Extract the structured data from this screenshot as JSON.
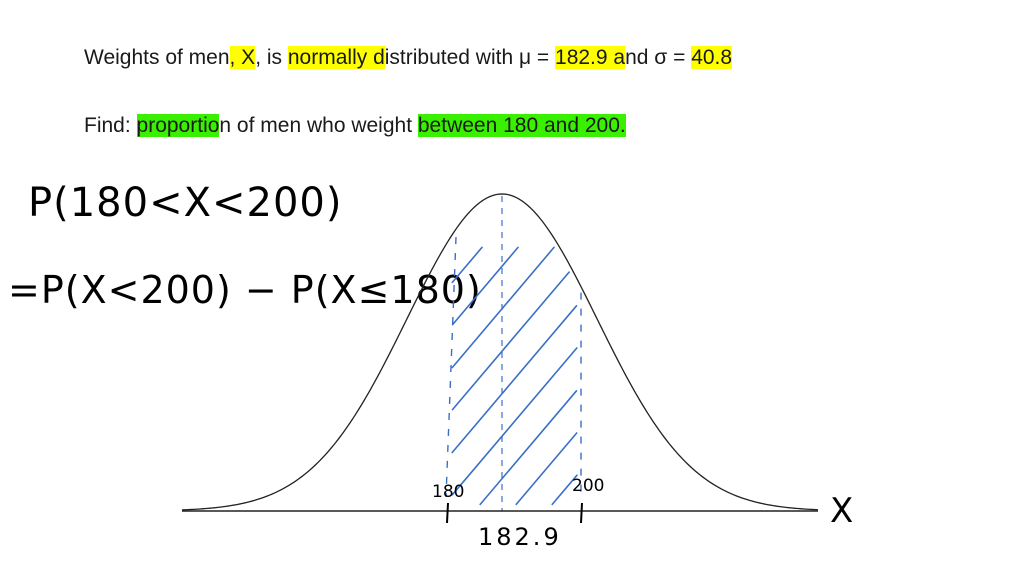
{
  "problem": {
    "line1": {
      "parts": [
        {
          "text": "Weights of men",
          "hl": ""
        },
        {
          "text": ", X",
          "hl": "yellow"
        },
        {
          "text": ", is ",
          "hl": ""
        },
        {
          "text": "normally d",
          "hl": "yellow"
        },
        {
          "text": "istributed with μ = ",
          "hl": ""
        },
        {
          "text": "182.9 a",
          "hl": "yellow"
        },
        {
          "text": "nd σ = ",
          "hl": ""
        },
        {
          "text": "40.8",
          "hl": "yellow"
        }
      ]
    },
    "line2": {
      "parts": [
        {
          "text": "Find: ",
          "hl": ""
        },
        {
          "text": "proportio",
          "hl": "green"
        },
        {
          "text": "n of men who weight ",
          "hl": ""
        },
        {
          "text": "between 180 and 200.",
          "hl": "green"
        }
      ]
    }
  },
  "handwriting": {
    "eq1": "P(180<X<200)",
    "eq2": "=P(X<200) − P(X≤180)"
  },
  "diagram": {
    "axis_label": "X",
    "labels": {
      "lower": "180",
      "upper": "200",
      "mean": "182.9"
    },
    "values": {
      "mean": 182.9,
      "sd": 40.8,
      "lower": 180,
      "upper": 200
    },
    "colors": {
      "curve": "#222222",
      "hatch": "#3a6fc8",
      "highlight_yellow": "#ffff00",
      "highlight_green": "#39f000"
    }
  }
}
